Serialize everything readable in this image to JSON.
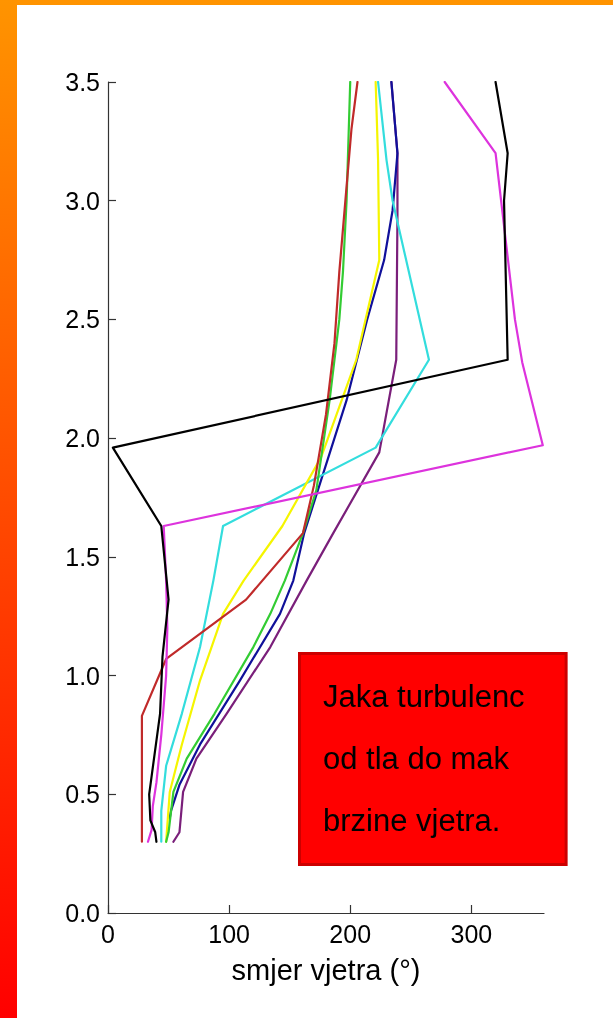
{
  "chart_data": {
    "type": "line",
    "xlabel": "smjer vjetra (°)",
    "xlim": [
      0,
      360
    ],
    "xticks": [
      0,
      100,
      200,
      300
    ],
    "ylim": [
      0,
      3.5
    ],
    "yticks": [
      {
        "value": 0,
        "label": "0.0"
      },
      0.5,
      {
        "value": 1,
        "label": "1.0"
      },
      1.5,
      {
        "value": 2,
        "label": "2.0"
      },
      2.5,
      {
        "value": 3,
        "label": "3.0"
      },
      3.5
    ],
    "series": [
      {
        "color": "#7a1f7a",
        "x": [
          54,
          59,
          62,
          73,
          98,
          134,
          164,
          186,
          224,
          238,
          239,
          239,
          234
        ],
        "values": [
          0.3,
          0.34,
          0.51,
          0.65,
          0.84,
          1.12,
          1.4,
          1.6,
          1.94,
          2.33,
          2.94,
          3.2,
          3.5
        ]
      },
      {
        "color": "#10109a",
        "x": [
          51,
          52,
          59,
          76,
          109,
          142,
          153,
          162,
          197,
          214,
          228,
          235,
          239,
          234
        ],
        "values": [
          0.4,
          0.43,
          0.54,
          0.71,
          0.98,
          1.26,
          1.4,
          1.6,
          2.16,
          2.5,
          2.75,
          2.96,
          3.2,
          3.5
        ]
      },
      {
        "color": "#33dddd",
        "x": [
          44,
          44,
          48,
          61,
          76,
          87,
          95,
          221,
          265,
          235,
          230,
          223
        ],
        "values": [
          0.3,
          0.43,
          0.62,
          0.84,
          1.12,
          1.4,
          1.63,
          1.96,
          2.33,
          3.0,
          3.17,
          3.5
        ]
      },
      {
        "color": "#f5f500",
        "x": [
          48,
          51,
          61,
          76,
          95,
          112,
          144,
          176,
          205,
          224,
          223,
          221
        ],
        "values": [
          0.3,
          0.51,
          0.71,
          0.98,
          1.26,
          1.4,
          1.63,
          1.92,
          2.33,
          2.75,
          3.17,
          3.5
        ]
      },
      {
        "color": "#33cc33",
        "x": [
          48,
          50,
          54,
          65,
          88,
          120,
          134,
          146,
          161,
          172,
          183,
          191,
          194,
          197,
          200
        ],
        "values": [
          0.3,
          0.34,
          0.51,
          0.65,
          0.84,
          1.12,
          1.26,
          1.4,
          1.6,
          1.78,
          2.16,
          2.5,
          2.7,
          3.0,
          3.5
        ]
      },
      {
        "color": "#c02a2a",
        "x": [
          28,
          28,
          48,
          114,
          161,
          170,
          180,
          187,
          191,
          196,
          201,
          206
        ],
        "values": [
          0.3,
          0.83,
          1.07,
          1.32,
          1.6,
          1.8,
          2.1,
          2.4,
          2.7,
          3.0,
          3.3,
          3.5
        ]
      },
      {
        "color": "#dd33dd",
        "x": [
          33,
          36,
          37,
          40,
          44,
          48,
          49,
          48,
          46,
          359,
          342,
          336,
          320,
          278
        ],
        "values": [
          0.3,
          0.35,
          0.45,
          0.55,
          0.75,
          1.0,
          1.2,
          1.4,
          1.63,
          1.97,
          2.32,
          2.5,
          3.2,
          3.5
        ]
      },
      {
        "color": "#000000",
        "x": [
          40,
          39,
          35,
          34,
          43,
          45,
          50,
          44,
          4,
          330,
          327,
          330,
          320
        ],
        "values": [
          0.3,
          0.34,
          0.39,
          0.5,
          0.84,
          1.08,
          1.32,
          1.63,
          1.96,
          2.33,
          3.0,
          3.2,
          3.5
        ]
      }
    ],
    "annotations": [
      "Jaka turbulenc\nod tla do mak\nbrzine vjetra."
    ]
  }
}
